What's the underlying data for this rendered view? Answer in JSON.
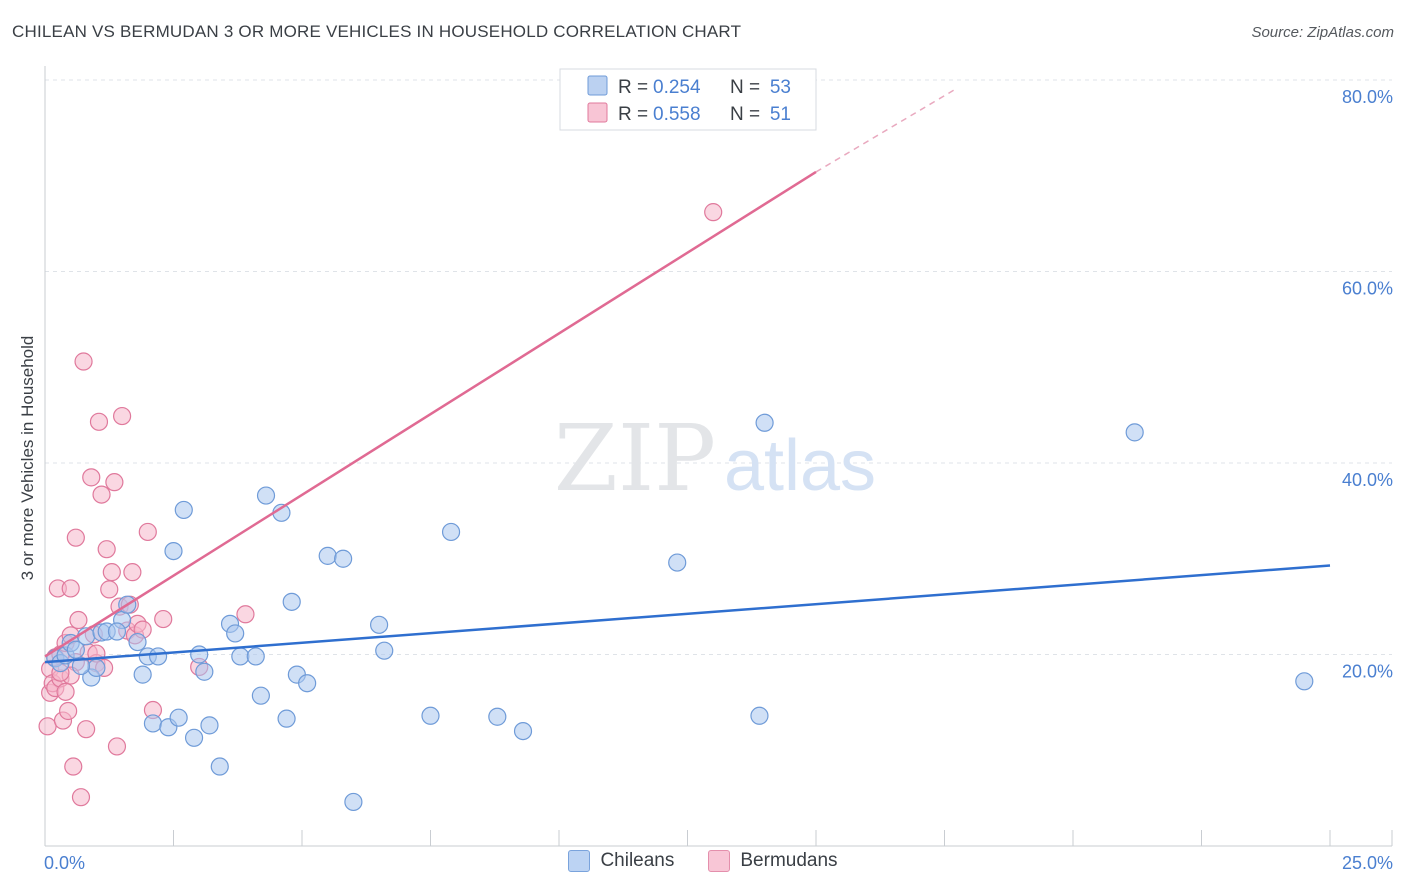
{
  "header": {
    "title": "CHILEAN VS BERMUDAN 3 OR MORE VEHICLES IN HOUSEHOLD CORRELATION CHART",
    "source": "Source: ZipAtlas.com"
  },
  "watermark": {
    "zip": "ZIP",
    "atlas": "atlas"
  },
  "colors": {
    "blue_fill": "#aac6ee",
    "blue_stroke": "#6f9bd8",
    "blue_line": "#2f6fcf",
    "pink_fill": "#f6b6cb",
    "pink_stroke": "#e0799c",
    "pink_line": "#e06a93",
    "axis_text": "#4a7fd0",
    "grid": "#dfe3e8"
  },
  "chart_data": {
    "type": "scatter",
    "title": "CHILEAN VS BERMUDAN 3 OR MORE VEHICLES IN HOUSEHOLD CORRELATION CHART",
    "xlabel": "",
    "ylabel": "3 or more Vehicles in Household",
    "xlim": [
      0,
      25
    ],
    "ylim": [
      0,
      80
    ],
    "x_tick_labels": [
      "0.0%",
      "25.0%"
    ],
    "y_ticks": [
      20,
      40,
      60,
      80
    ],
    "y_tick_labels": [
      "20.0%",
      "40.0%",
      "60.0%",
      "80.0%"
    ],
    "grid": true,
    "legend_position": "top-center",
    "legend": [
      {
        "name": "Chileans",
        "r_label": "R =",
        "r": "0.254",
        "n_label": "N =",
        "n": "53"
      },
      {
        "name": "Bermudans",
        "r_label": "R =",
        "r": "0.558",
        "n_label": "N =",
        "n": "51"
      }
    ],
    "series": [
      {
        "name": "Chileans",
        "trend": {
          "x0": 0.0,
          "y0": 19.2,
          "x1": 25.0,
          "y1": 29.3
        },
        "points": [
          [
            0.2,
            19.6
          ],
          [
            0.3,
            19.1
          ],
          [
            0.4,
            19.9
          ],
          [
            0.5,
            21.2
          ],
          [
            0.6,
            20.5
          ],
          [
            0.8,
            21.9
          ],
          [
            0.9,
            17.6
          ],
          [
            1.0,
            18.6
          ],
          [
            1.1,
            22.3
          ],
          [
            1.2,
            22.4
          ],
          [
            1.5,
            23.6
          ],
          [
            1.6,
            25.2
          ],
          [
            1.8,
            21.3
          ],
          [
            1.9,
            17.9
          ],
          [
            2.0,
            19.8
          ],
          [
            2.1,
            12.8
          ],
          [
            2.2,
            19.8
          ],
          [
            2.4,
            12.4
          ],
          [
            2.5,
            30.8
          ],
          [
            2.6,
            13.4
          ],
          [
            2.7,
            35.1
          ],
          [
            2.9,
            11.3
          ],
          [
            3.0,
            20.0
          ],
          [
            3.1,
            18.2
          ],
          [
            3.2,
            12.6
          ],
          [
            3.4,
            8.3
          ],
          [
            3.6,
            23.2
          ],
          [
            3.7,
            22.2
          ],
          [
            3.8,
            19.8
          ],
          [
            4.1,
            19.8
          ],
          [
            4.2,
            15.7
          ],
          [
            4.3,
            36.6
          ],
          [
            4.6,
            34.8
          ],
          [
            4.7,
            13.3
          ],
          [
            4.8,
            25.5
          ],
          [
            4.9,
            17.9
          ],
          [
            5.1,
            17.0
          ],
          [
            5.5,
            30.3
          ],
          [
            5.8,
            30.0
          ],
          [
            6.0,
            4.6
          ],
          [
            6.5,
            23.1
          ],
          [
            6.6,
            20.4
          ],
          [
            7.5,
            13.6
          ],
          [
            7.9,
            32.8
          ],
          [
            8.8,
            13.5
          ],
          [
            9.3,
            12.0
          ],
          [
            12.3,
            29.6
          ],
          [
            13.9,
            13.6
          ],
          [
            14.0,
            44.2
          ],
          [
            21.2,
            43.2
          ],
          [
            24.5,
            17.2
          ],
          [
            0.7,
            18.8
          ],
          [
            1.4,
            22.4
          ]
        ]
      },
      {
        "name": "Bermudans",
        "trend": {
          "x0": 0.0,
          "y0": 19.8,
          "x1": 15.0,
          "y1": 70.4,
          "dash_x1": 17.7,
          "dash_y1": 79.0
        },
        "points": [
          [
            0.05,
            12.5
          ],
          [
            0.1,
            16.0
          ],
          [
            0.1,
            18.5
          ],
          [
            0.15,
            17.0
          ],
          [
            0.2,
            16.5
          ],
          [
            0.2,
            19.7
          ],
          [
            0.25,
            26.9
          ],
          [
            0.3,
            17.5
          ],
          [
            0.3,
            20.0
          ],
          [
            0.35,
            13.1
          ],
          [
            0.4,
            16.1
          ],
          [
            0.4,
            21.2
          ],
          [
            0.45,
            14.1
          ],
          [
            0.5,
            22.0
          ],
          [
            0.5,
            26.9
          ],
          [
            0.55,
            8.3
          ],
          [
            0.6,
            19.2
          ],
          [
            0.6,
            32.2
          ],
          [
            0.65,
            23.6
          ],
          [
            0.7,
            5.1
          ],
          [
            0.75,
            50.6
          ],
          [
            0.8,
            12.2
          ],
          [
            0.85,
            20.2
          ],
          [
            0.9,
            38.5
          ],
          [
            0.95,
            22.1
          ],
          [
            1.0,
            19.1
          ],
          [
            1.05,
            44.3
          ],
          [
            1.1,
            36.7
          ],
          [
            1.15,
            18.6
          ],
          [
            1.2,
            31.0
          ],
          [
            1.25,
            26.8
          ],
          [
            1.3,
            28.6
          ],
          [
            1.35,
            38.0
          ],
          [
            1.4,
            10.4
          ],
          [
            1.45,
            25.0
          ],
          [
            1.5,
            44.9
          ],
          [
            1.6,
            22.5
          ],
          [
            1.65,
            25.2
          ],
          [
            1.7,
            28.6
          ],
          [
            1.75,
            22.0
          ],
          [
            1.8,
            23.2
          ],
          [
            1.9,
            22.6
          ],
          [
            2.0,
            32.8
          ],
          [
            2.1,
            14.2
          ],
          [
            2.3,
            23.7
          ],
          [
            3.0,
            18.7
          ],
          [
            3.9,
            24.2
          ],
          [
            13.0,
            66.2
          ],
          [
            0.5,
            17.8
          ],
          [
            0.3,
            18.1
          ],
          [
            1.0,
            20.1
          ]
        ]
      }
    ]
  }
}
